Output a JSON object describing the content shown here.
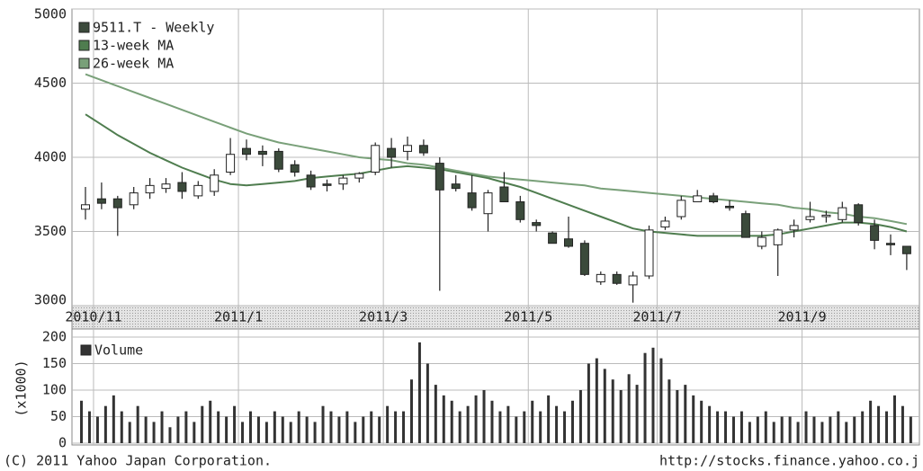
{
  "chart_data": [
    {
      "type": "candlestick",
      "name": "9511.T - Weekly",
      "up_color": "#ffffff",
      "down_color": "#3b4a3b",
      "categories": [
        null,
        "2010/11",
        null,
        null,
        null,
        null,
        null,
        null,
        null,
        null,
        "2011/1",
        null,
        null,
        null,
        null,
        null,
        null,
        null,
        null,
        "2011/3",
        null,
        null,
        null,
        null,
        null,
        null,
        null,
        null,
        "2011/5",
        null,
        null,
        null,
        null,
        null,
        null,
        null,
        "2011/7",
        null,
        null,
        null,
        null,
        null,
        null,
        null,
        null,
        "2011/9",
        null,
        null,
        null,
        null,
        null,
        null
      ],
      "open": [
        3650,
        3720,
        3720,
        3680,
        3760,
        3790,
        3830,
        3740,
        3770,
        3900,
        4060,
        4040,
        4040,
        3950,
        3880,
        3820,
        3820,
        3860,
        3900,
        4060,
        4040,
        4080,
        3960,
        3820,
        3760,
        3620,
        3800,
        3700,
        3560,
        3490,
        3450,
        3420,
        3160,
        3210,
        3140,
        3200,
        3530,
        3600,
        3700,
        3740,
        3670,
        3620,
        3400,
        3410,
        3510,
        3580,
        3600,
        3580,
        3680,
        3540,
        3420,
        3400
      ],
      "high": [
        3800,
        3830,
        3740,
        3800,
        3860,
        3860,
        3900,
        3840,
        3920,
        4130,
        4120,
        4080,
        4060,
        3980,
        3910,
        3850,
        3880,
        3900,
        4100,
        4130,
        4140,
        4120,
        4000,
        3880,
        3880,
        3780,
        3900,
        3740,
        3580,
        3500,
        3600,
        3440,
        3230,
        3230,
        3230,
        3540,
        3600,
        3740,
        3780,
        3760,
        3710,
        3640,
        3500,
        3520,
        3580,
        3700,
        3640,
        3700,
        3690,
        3580,
        3480,
        3400
      ],
      "low": [
        3580,
        3650,
        3470,
        3650,
        3720,
        3760,
        3720,
        3720,
        3740,
        3880,
        3980,
        3940,
        3900,
        3870,
        3780,
        3770,
        3780,
        3830,
        3880,
        3930,
        3980,
        4010,
        3100,
        3770,
        3640,
        3500,
        3700,
        3560,
        3500,
        3420,
        3390,
        3200,
        3140,
        3140,
        3020,
        3180,
        3510,
        3580,
        3700,
        3690,
        3640,
        3460,
        3380,
        3200,
        3460,
        3560,
        3560,
        3560,
        3540,
        3380,
        3340,
        3240
      ],
      "close": [
        3680,
        3690,
        3660,
        3760,
        3810,
        3820,
        3770,
        3810,
        3880,
        4020,
        4020,
        4020,
        3920,
        3900,
        3800,
        3810,
        3860,
        3890,
        4080,
        4000,
        4080,
        4030,
        3780,
        3790,
        3660,
        3760,
        3700,
        3580,
        3540,
        3420,
        3400,
        3210,
        3210,
        3150,
        3200,
        3510,
        3570,
        3710,
        3740,
        3700,
        3660,
        3460,
        3460,
        3510,
        3540,
        3600,
        3610,
        3660,
        3560,
        3440,
        3410,
        3350
      ],
      "series": [
        {
          "name": "13-week MA",
          "color": "#4f7d4f",
          "values": [
            4290,
            4220,
            4150,
            4090,
            4030,
            3980,
            3930,
            3890,
            3850,
            3820,
            3810,
            3820,
            3830,
            3840,
            3860,
            3870,
            3880,
            3890,
            3910,
            3930,
            3940,
            3930,
            3920,
            3900,
            3880,
            3860,
            3830,
            3800,
            3760,
            3720,
            3680,
            3640,
            3600,
            3560,
            3520,
            3500,
            3490,
            3480,
            3470,
            3470,
            3470,
            3470,
            3470,
            3480,
            3500,
            3520,
            3540,
            3560,
            3560,
            3550,
            3530,
            3500
          ]
        },
        {
          "name": "26-week MA",
          "color": "#79a079",
          "values": [
            4560,
            4520,
            4480,
            4440,
            4400,
            4360,
            4320,
            4280,
            4240,
            4200,
            4160,
            4130,
            4100,
            4080,
            4060,
            4040,
            4020,
            4000,
            3990,
            3980,
            3960,
            3950,
            3930,
            3910,
            3890,
            3870,
            3860,
            3850,
            3840,
            3830,
            3820,
            3810,
            3790,
            3780,
            3770,
            3760,
            3750,
            3740,
            3730,
            3720,
            3710,
            3700,
            3690,
            3680,
            3660,
            3650,
            3630,
            3620,
            3600,
            3590,
            3570,
            3550
          ]
        }
      ],
      "ylim": [
        3000,
        5000
      ],
      "yticks": [
        3000,
        3500,
        4000,
        4500,
        5000
      ],
      "grid": true
    },
    {
      "type": "bar",
      "ylabel": "(x1000)",
      "series": [
        {
          "name": "Volume",
          "color": "#333333",
          "values": [
            80,
            60,
            50,
            70,
            90,
            60,
            40,
            70,
            50,
            40,
            60,
            30,
            50,
            60,
            40,
            70,
            80,
            60,
            50,
            70,
            40,
            60,
            50,
            40,
            60,
            50,
            40,
            60,
            50,
            40,
            70,
            60,
            50,
            60,
            40,
            50,
            60,
            50,
            70,
            60,
            60,
            120,
            190,
            150,
            110,
            90,
            80,
            60,
            70,
            90,
            100,
            80,
            60,
            70,
            50,
            60,
            80,
            60,
            90,
            70,
            60,
            80,
            100,
            150,
            160,
            140,
            120,
            100,
            130,
            110,
            170,
            180,
            160,
            120,
            100,
            110,
            90,
            80,
            70,
            60,
            60,
            50,
            60,
            40,
            50,
            60,
            40,
            50,
            50,
            40,
            60,
            50,
            40,
            50,
            60,
            40,
            50,
            60,
            80,
            70,
            60,
            90,
            70,
            50
          ]
        }
      ],
      "ylim": [
        0,
        200
      ],
      "yticks": [
        0,
        50,
        100,
        150,
        200
      ],
      "grid": true
    },
    {
      "type": "footer",
      "copyright": "(C) 2011 Yahoo Japan Corporation.",
      "url": "http://stocks.finance.yahoo.co.j"
    }
  ]
}
